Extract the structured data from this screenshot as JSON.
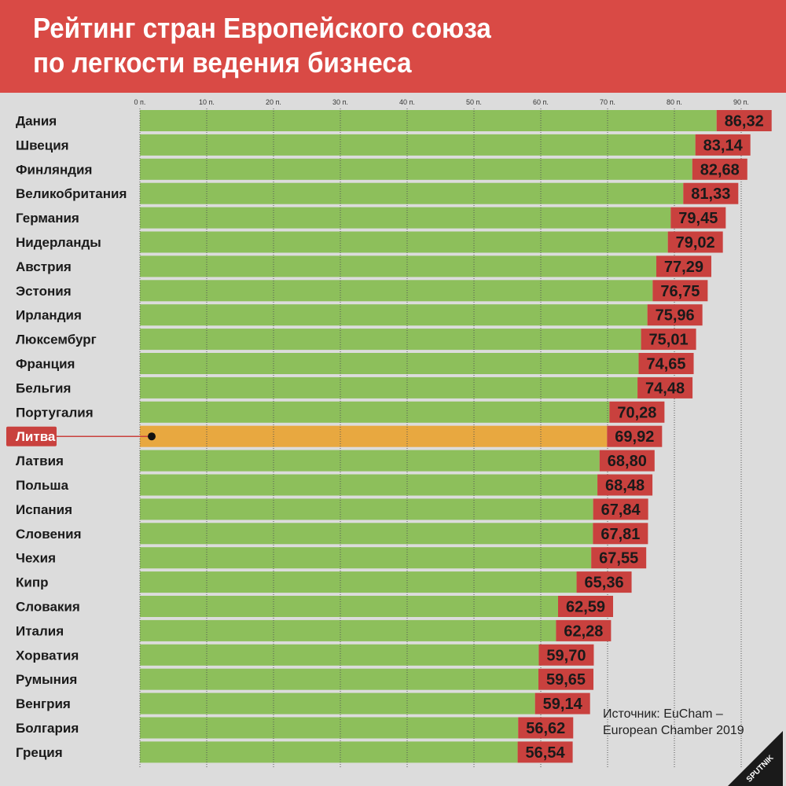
{
  "title": {
    "line1": "Рейтинг стран Европейского союза",
    "line2": "по легкости ведения бизнеса"
  },
  "source": {
    "line1": "Источник: EuCham –",
    "line2": "European Chamber 2019"
  },
  "logo_text": "SPUTNIK",
  "colors": {
    "header": "#d94a45",
    "bar": "#8dbf5b",
    "highlight_bar": "#e8a840",
    "value_label": "#c9413e",
    "background": "#dcdcdc"
  },
  "chart_data": {
    "type": "bar",
    "orientation": "horizontal",
    "highlight": "Литва",
    "xlim": [
      0,
      90
    ],
    "ticks": [
      {
        "value": 0,
        "label": "0 п."
      },
      {
        "value": 10,
        "label": "10 п."
      },
      {
        "value": 20,
        "label": "20 п."
      },
      {
        "value": 30,
        "label": "30 п."
      },
      {
        "value": 40,
        "label": "40 п."
      },
      {
        "value": 50,
        "label": "50 п."
      },
      {
        "value": 60,
        "label": "60 п."
      },
      {
        "value": 70,
        "label": "70 п."
      },
      {
        "value": 80,
        "label": "80 п."
      },
      {
        "value": 90,
        "label": "90 п."
      }
    ],
    "categories": [
      "Дания",
      "Швеция",
      "Финляндия",
      "Великобритания",
      "Германия",
      "Нидерланды",
      "Австрия",
      "Эстония",
      "Ирландия",
      "Люксембург",
      "Франция",
      "Бельгия",
      "Португалия",
      "Литва",
      "Латвия",
      "Польша",
      "Испания",
      "Словения",
      "Чехия",
      "Кипр",
      "Словакия",
      "Италия",
      "Хорватия",
      "Румыния",
      "Венгрия",
      "Болгария",
      "Греция"
    ],
    "values": [
      86.32,
      83.14,
      82.68,
      81.33,
      79.45,
      79.02,
      77.29,
      76.75,
      75.96,
      75.01,
      74.65,
      74.48,
      70.28,
      69.92,
      68.8,
      68.48,
      67.84,
      67.81,
      67.55,
      65.36,
      62.59,
      62.28,
      59.7,
      59.65,
      59.14,
      56.62,
      56.54
    ],
    "value_labels": [
      "86,32",
      "83,14",
      "82,68",
      "81,33",
      "79,45",
      "79,02",
      "77,29",
      "76,75",
      "75,96",
      "75,01",
      "74,65",
      "74,48",
      "70,28",
      "69,92",
      "68,80",
      "68,48",
      "67,84",
      "67,81",
      "67,55",
      "65,36",
      "62,59",
      "62,28",
      "59,70",
      "59,65",
      "59,14",
      "56,62",
      "56,54"
    ]
  }
}
